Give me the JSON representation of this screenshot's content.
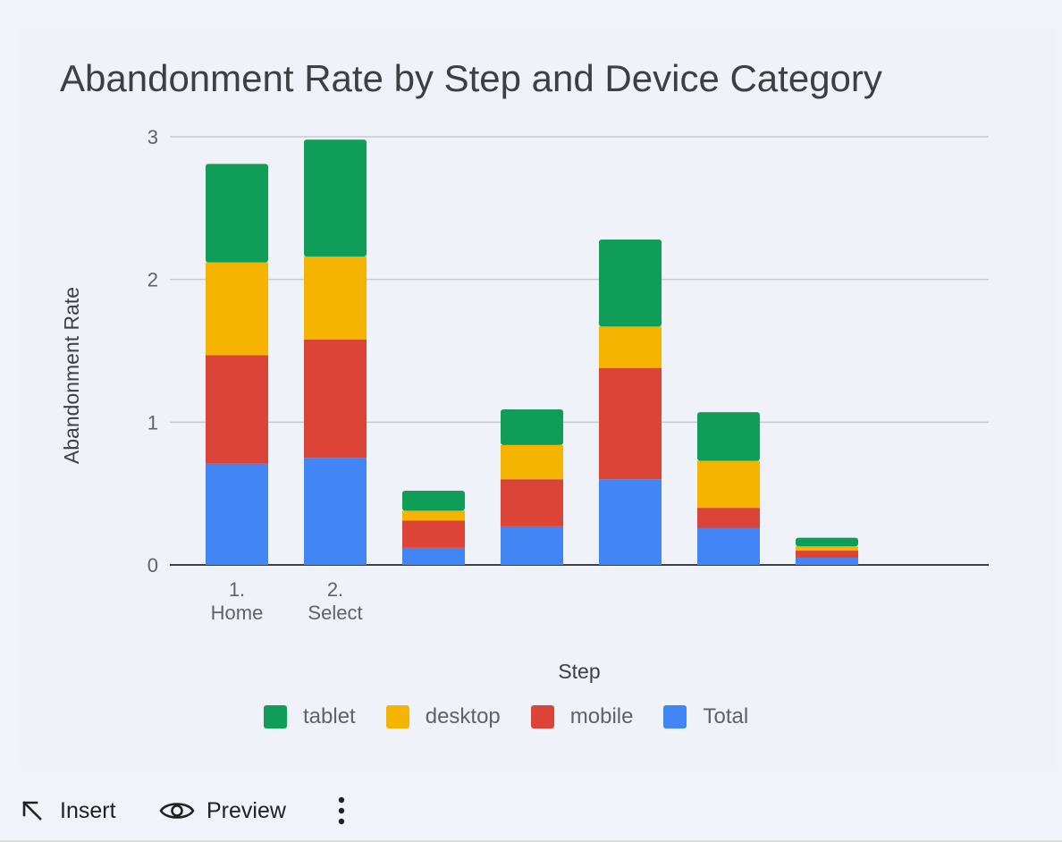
{
  "chart_data": {
    "type": "bar",
    "stacked": true,
    "title": "Abandonment Rate by Step and Device Category",
    "xlabel": "Step",
    "ylabel": "Abandonment Rate",
    "ylim": [
      0,
      3
    ],
    "yticks": [
      "0",
      "1",
      "2",
      "3"
    ],
    "categories": [
      "1.\nHome",
      "2.\nSelect",
      "",
      "",
      "",
      "",
      "",
      ""
    ],
    "series": [
      {
        "name": "Total",
        "color": "#4285f4",
        "values": [
          0.71,
          0.75,
          0.12,
          0.27,
          0.6,
          0.26,
          0.05,
          0
        ]
      },
      {
        "name": "mobile",
        "color": "#db4437",
        "values": [
          0.76,
          0.83,
          0.19,
          0.33,
          0.78,
          0.14,
          0.05,
          0
        ]
      },
      {
        "name": "desktop",
        "color": "#f4b400",
        "values": [
          0.65,
          0.58,
          0.07,
          0.24,
          0.29,
          0.33,
          0.03,
          0
        ]
      },
      {
        "name": "tablet",
        "color": "#0f9d58",
        "values": [
          0.69,
          0.82,
          0.14,
          0.25,
          0.61,
          0.34,
          0.06,
          0
        ]
      }
    ],
    "legend_order": [
      "tablet",
      "desktop",
      "mobile",
      "Total"
    ],
    "legend_position": "bottom"
  },
  "toolbar": {
    "insert_label": "Insert",
    "preview_label": "Preview"
  },
  "icons": {
    "insert": "arrow-up-left-icon",
    "preview": "eye-icon",
    "more": "more-vert-icon"
  }
}
